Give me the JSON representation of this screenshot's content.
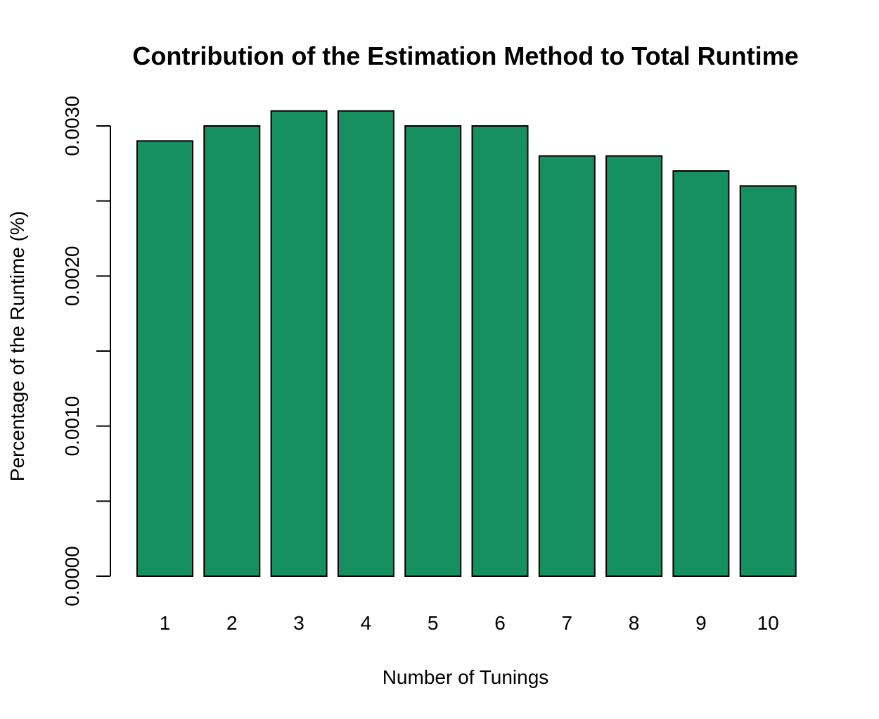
{
  "chart_data": {
    "type": "bar",
    "title": "Contribution of the Estimation Method to Total Runtime",
    "xlabel": "Number of Tunings",
    "ylabel": "Percentage of the Runtime (%)",
    "categories": [
      "1",
      "2",
      "3",
      "4",
      "5",
      "6",
      "7",
      "8",
      "9",
      "10"
    ],
    "values": [
      0.0029,
      0.003,
      0.0031,
      0.0031,
      0.003,
      0.003,
      0.0028,
      0.0028,
      0.0027,
      0.0026
    ],
    "ylim": [
      0,
      0.003
    ],
    "yticks": [
      0,
      0.0005,
      0.001,
      0.0015,
      0.002,
      0.0025,
      0.003
    ],
    "ytick_labels": [
      "0.0000",
      "",
      "0.0010",
      "",
      "0.0020",
      "",
      "0.0030"
    ],
    "grid": false,
    "bar_color": "#169060",
    "bar_border_color": "#000000"
  }
}
